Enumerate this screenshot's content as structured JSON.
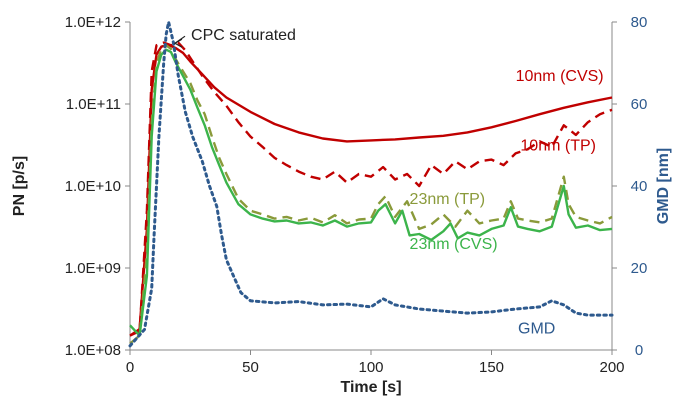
{
  "chart_data": {
    "type": "line",
    "xlabel": "Time [s]",
    "ylabel": "PN [p/s]",
    "y2label": "GMD [nm]",
    "xlim": [
      0,
      200
    ],
    "ylim": [
      100000000,
      1000000000000
    ],
    "y_scale": "log",
    "y2lim": [
      0,
      80
    ],
    "x_ticks": [
      "0",
      "50",
      "100",
      "150",
      "200"
    ],
    "y_ticks": [
      "1.0E+08",
      "1.0E+09",
      "1.0E+10",
      "1.0E+11",
      "1.0E+12"
    ],
    "y2_ticks": [
      "0",
      "20",
      "40",
      "60",
      "80"
    ],
    "grid": false,
    "legend": "none",
    "colors": {
      "cvs10": "#c00000",
      "tp10": "#c00000",
      "cvs23": "#3cb44b",
      "tp23": "#8a9a3a",
      "gmd": "#2e5a8e",
      "axisRight": "#2e5a8e"
    },
    "series": [
      {
        "name": "10nm (CVS)",
        "axis": "left",
        "style": "solid",
        "x": [
          0,
          4,
          7,
          9,
          11,
          13,
          15,
          17,
          19,
          22,
          25,
          30,
          35,
          40,
          50,
          60,
          70,
          80,
          90,
          100,
          110,
          120,
          130,
          140,
          150,
          160,
          170,
          180,
          190,
          200
        ],
        "values": [
          150000000,
          180000000,
          3000000000,
          150000000000,
          400000000000,
          500000000000,
          520000000000,
          510000000000,
          480000000000,
          420000000000,
          330000000000,
          230000000000,
          160000000000,
          120000000000,
          80000000000,
          57000000000,
          45000000000,
          38000000000,
          35000000000,
          36000000000,
          37000000000,
          39000000000,
          41000000000,
          45000000000,
          52000000000,
          62000000000,
          75000000000,
          90000000000,
          105000000000,
          120000000000
        ]
      },
      {
        "name": "10nm (TP)",
        "axis": "left",
        "style": "dashed",
        "x": [
          0,
          4,
          7,
          9,
          11,
          14,
          17,
          20,
          23,
          26,
          30,
          35,
          40,
          45,
          50,
          55,
          60,
          65,
          70,
          75,
          80,
          85,
          90,
          95,
          100,
          105,
          110,
          115,
          120,
          125,
          130,
          135,
          140,
          145,
          150,
          155,
          160,
          165,
          170,
          175,
          180,
          185,
          190,
          195,
          200
        ],
        "values": [
          150000000,
          170000000,
          5000000000,
          250000000000,
          520000000000,
          560000000000,
          520000000000,
          560000000000,
          450000000000,
          330000000000,
          220000000000,
          140000000000,
          95000000000,
          60000000000,
          40000000000,
          30000000000,
          22000000000,
          18000000000,
          15000000000,
          13000000000,
          12000000000,
          15000000000,
          11000000000,
          14000000000,
          13000000000,
          17000000000,
          12000000000,
          14000000000,
          10000000000,
          18000000000,
          14000000000,
          20000000000,
          16000000000,
          20000000000,
          21000000000,
          18000000000,
          25000000000,
          28000000000,
          35000000000,
          30000000000,
          55000000000,
          42000000000,
          60000000000,
          75000000000,
          85000000000
        ]
      },
      {
        "name": "23nm (TP)",
        "axis": "left",
        "style": "dashed",
        "x": [
          0,
          4,
          7,
          9,
          11,
          13,
          15,
          17,
          19,
          22,
          25,
          28,
          31,
          34,
          37,
          40,
          45,
          50,
          55,
          60,
          65,
          70,
          75,
          80,
          85,
          90,
          95,
          100,
          103,
          106,
          110,
          115,
          120,
          125,
          130,
          135,
          140,
          145,
          150,
          155,
          158,
          161,
          165,
          170,
          175,
          180,
          182,
          185,
          190,
          195,
          200
        ],
        "values": [
          120000000,
          150000000,
          1500000000,
          60000000000,
          300000000000,
          480000000000,
          520000000000,
          470000000000,
          350000000000,
          250000000000,
          180000000000,
          110000000000,
          75000000000,
          40000000000,
          22000000000,
          14000000000,
          7000000000,
          5000000000,
          4500000000,
          4000000000,
          4200000000,
          3800000000,
          4100000000,
          3600000000,
          4400000000,
          3500000000,
          3900000000,
          4000000000,
          6000000000,
          7500000000,
          4200000000,
          6500000000,
          3000000000,
          3400000000,
          4500000000,
          3200000000,
          5000000000,
          3500000000,
          3800000000,
          4000000000,
          6500000000,
          4000000000,
          3800000000,
          3600000000,
          4000000000,
          13000000000,
          6000000000,
          4200000000,
          3800000000,
          3500000000,
          4200000000
        ]
      },
      {
        "name": "23nm (CVS)",
        "axis": "left",
        "style": "solid",
        "x": [
          0,
          4,
          7,
          9,
          11,
          13,
          15,
          17,
          19,
          22,
          25,
          28,
          31,
          34,
          37,
          40,
          45,
          50,
          55,
          60,
          65,
          70,
          75,
          80,
          85,
          90,
          95,
          100,
          103,
          106,
          110,
          113,
          116,
          120,
          125,
          130,
          133,
          136,
          140,
          145,
          150,
          155,
          158,
          161,
          165,
          170,
          175,
          180,
          182,
          185,
          190,
          195,
          200
        ],
        "values": [
          200000000,
          150000000,
          800000000,
          40000000000,
          250000000000,
          400000000000,
          460000000000,
          430000000000,
          320000000000,
          220000000000,
          150000000000,
          90000000000,
          55000000000,
          30000000000,
          18000000000,
          11000000000,
          6000000000,
          4500000000,
          4000000000,
          3700000000,
          3800000000,
          3500000000,
          3600000000,
          3300000000,
          3800000000,
          3200000000,
          3500000000,
          3600000000,
          5000000000,
          6000000000,
          3500000000,
          5000000000,
          2500000000,
          2600000000,
          2200000000,
          2800000000,
          3500000000,
          2300000000,
          2700000000,
          2500000000,
          3000000000,
          3300000000,
          5500000000,
          3200000000,
          3000000000,
          2800000000,
          3200000000,
          10000000000,
          4500000000,
          3100000000,
          3300000000,
          2900000000,
          3000000000
        ]
      },
      {
        "name": "GMD",
        "axis": "right",
        "style": "dotted",
        "x": [
          0,
          3,
          6,
          9,
          10,
          12,
          14,
          15,
          16,
          18,
          20,
          23,
          26,
          30,
          33,
          36,
          38,
          40,
          43,
          46,
          50,
          60,
          70,
          80,
          90,
          100,
          105,
          110,
          120,
          130,
          140,
          150,
          160,
          170,
          175,
          180,
          185,
          190,
          200
        ],
        "values": [
          1,
          3,
          5,
          15,
          28,
          52,
          70,
          77,
          80,
          75,
          67,
          58,
          52,
          46,
          40,
          35,
          28,
          22,
          18,
          14,
          12,
          11.5,
          11.8,
          11,
          11.2,
          10.5,
          12.5,
          11,
          10,
          9.5,
          9,
          9.3,
          10,
          10.5,
          12,
          11,
          9,
          8.5,
          8.5
        ]
      }
    ],
    "annotations": [
      {
        "text": "CPC saturated",
        "x": 22,
        "y": 600000000000,
        "arrow_to_x": 17,
        "arrow_to_y": 520000000000,
        "color": "#222222"
      },
      {
        "text": "10nm (CVS)",
        "x": 160,
        "y": 190000000000,
        "color": "#c00000"
      },
      {
        "text": "10nm (TP)",
        "x": 162,
        "y": 27000000000,
        "color": "#c00000"
      },
      {
        "text": "23nm (TP)",
        "x": 116,
        "y": 6000000000,
        "color": "#8a9a3a"
      },
      {
        "text": "23nm (CVS)",
        "x": 116,
        "y": 1700000000,
        "color": "#3cb44b"
      },
      {
        "text": "GMD",
        "x": 161,
        "y": 160000000,
        "color": "#2e5a8e"
      }
    ]
  }
}
